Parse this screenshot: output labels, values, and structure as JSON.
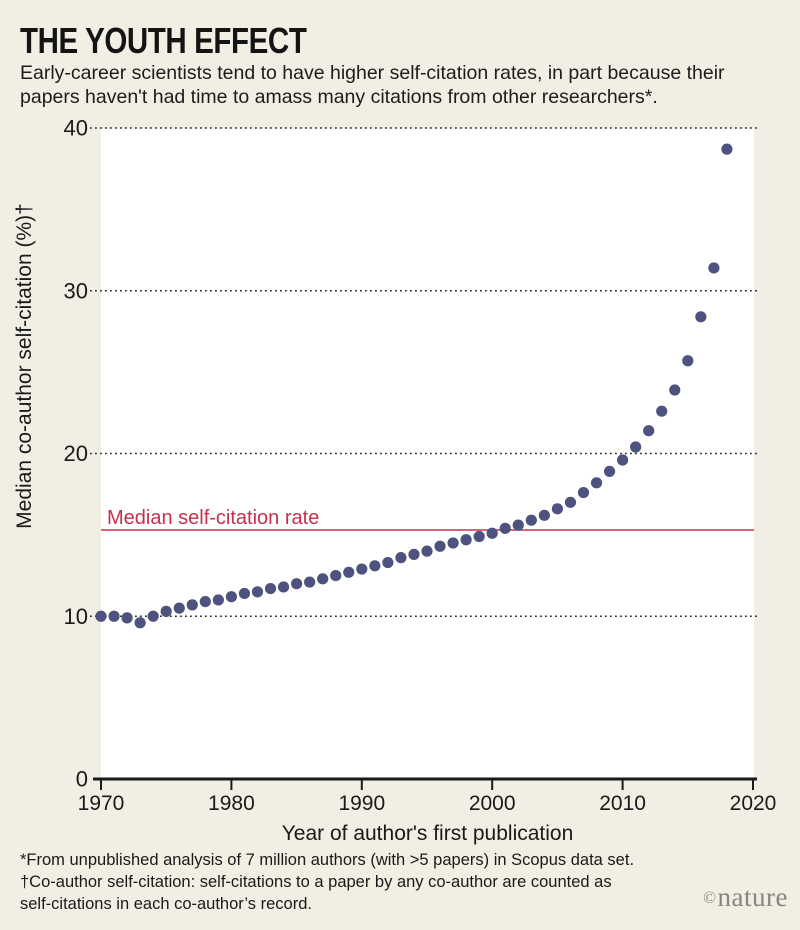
{
  "header": {
    "title": "THE YOUTH EFFECT",
    "subtitle": "Early-career scientists tend to have higher self-citation rates, in part because their papers haven't had time to amass many citations from other researchers*."
  },
  "chart_data": {
    "type": "scatter",
    "title": "THE YOUTH EFFECT",
    "xlabel": "Year of author's first publication",
    "ylabel": "Median co-author self-citation (%)†",
    "xlim": [
      1970,
      2020
    ],
    "ylim": [
      0,
      40
    ],
    "xticks": [
      1970,
      1980,
      1990,
      2000,
      2010,
      2020
    ],
    "yticks": [
      0,
      10,
      20,
      30,
      40
    ],
    "grid": "horizontal-dotted",
    "legend": "none",
    "annotation": {
      "type": "hline",
      "value": 15.3,
      "label": "Median self-citation rate"
    },
    "series": [
      {
        "name": "median co-author self-citation",
        "x": [
          1970,
          1971,
          1972,
          1973,
          1974,
          1975,
          1976,
          1977,
          1978,
          1979,
          1980,
          1981,
          1982,
          1983,
          1984,
          1985,
          1986,
          1987,
          1988,
          1989,
          1990,
          1991,
          1992,
          1993,
          1994,
          1995,
          1996,
          1997,
          1998,
          1999,
          2000,
          2001,
          2002,
          2003,
          2004,
          2005,
          2006,
          2007,
          2008,
          2009,
          2010,
          2011,
          2012,
          2013,
          2014,
          2015,
          2016,
          2017,
          2018
        ],
        "y": [
          10.0,
          10.0,
          9.9,
          9.6,
          10.0,
          10.3,
          10.5,
          10.7,
          10.9,
          11.0,
          11.2,
          11.4,
          11.5,
          11.7,
          11.8,
          12.0,
          12.1,
          12.3,
          12.5,
          12.7,
          12.9,
          13.1,
          13.3,
          13.6,
          13.8,
          14.0,
          14.3,
          14.5,
          14.7,
          14.9,
          15.1,
          15.4,
          15.6,
          15.9,
          16.2,
          16.6,
          17.0,
          17.6,
          18.2,
          18.9,
          19.6,
          20.4,
          21.4,
          22.6,
          23.9,
          25.7,
          28.4,
          31.4,
          38.7
        ]
      }
    ]
  },
  "footnotes": {
    "lines": [
      "*From unpublished analysis of 7 million authors (with >5 papers) in Scopus data set.",
      "†Co-author self-citation: self-citations to a paper by any co-author are counted as",
      "self-citations in each co-author’s record."
    ]
  },
  "branding": {
    "symbol": "©",
    "name": "nature"
  },
  "colors": {
    "background": "#f1eee4",
    "plot_background": "#ffffff",
    "accent_red": "#c5304c",
    "point": "#4e527f",
    "text": "#1a1a1a",
    "grid": "#2a2a2a",
    "brand_gray": "#87857f"
  }
}
